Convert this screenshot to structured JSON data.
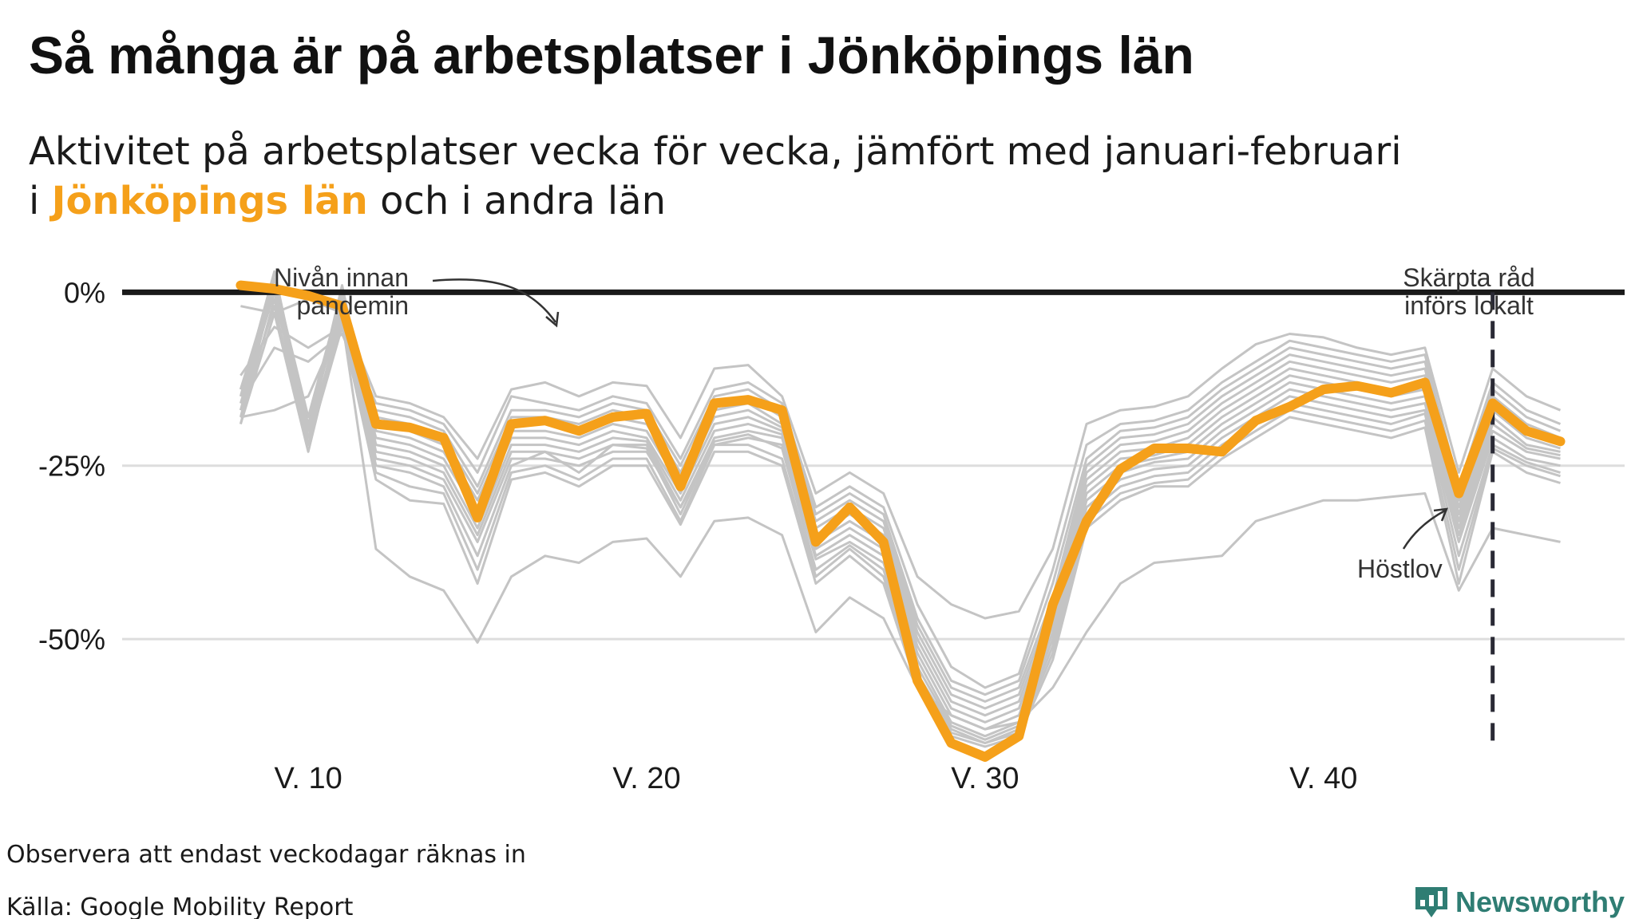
{
  "title": "Så många är på arbetsplatser i Jönköpings län",
  "subtitle": {
    "line1": "Aktivitet på arbetsplatser vecka för vecka, jämfört med januari-februari",
    "line2_prefix": "i ",
    "line2_highlight": "Jönköpings län",
    "line2_suffix": " och i andra län"
  },
  "annotations": {
    "baseline_line1": "Nivån innan",
    "baseline_line2": "pandemin",
    "restrictions_line1": "Skärpta råd",
    "restrictions_line2": "införs lokalt",
    "holiday": "Höstlov"
  },
  "footer": {
    "note": "Observera att endast veckodagar räknas in",
    "source": "Källa: Google Mobility Report",
    "brand": "Newsworthy"
  },
  "colors": {
    "highlight": "#f5a01a",
    "others": "#c4c4c4",
    "baseline": "#1a1a1a",
    "grid": "#dddddd",
    "brand": "#2f7d73"
  },
  "chart_data": {
    "type": "line",
    "xlabel": "",
    "ylabel": "",
    "x": [
      8,
      9,
      10,
      11,
      12,
      13,
      14,
      15,
      16,
      17,
      18,
      19,
      20,
      21,
      22,
      23,
      24,
      25,
      26,
      27,
      28,
      29,
      30,
      31,
      32,
      33,
      34,
      35,
      36,
      37,
      38,
      39,
      40,
      41,
      42,
      43,
      44,
      45,
      46,
      47
    ],
    "x_ticks": [
      10,
      20,
      30,
      40
    ],
    "x_tick_labels": [
      "V. 10",
      "V. 20",
      "V. 30",
      "V. 40"
    ],
    "xlim": [
      4.5,
      48.9
    ],
    "y_ticks": [
      0,
      -25,
      -50
    ],
    "y_tick_labels": [
      "0%",
      "-25%",
      "-50%"
    ],
    "ylim": [
      -70,
      12
    ],
    "grid": true,
    "baseline_y": 0,
    "event_week": 45,
    "holiday_week": 44,
    "highlight_series": {
      "name": "Jönköpings län",
      "values": [
        1,
        0.5,
        -0.5,
        -2,
        -19,
        -19.5,
        -21,
        -32.5,
        -19,
        -18.5,
        -20,
        -18,
        -17.5,
        -28,
        -16,
        -15.5,
        -17,
        -36,
        -31,
        -36,
        -56,
        -65,
        -67,
        -64,
        -45,
        -33,
        -25.5,
        -22.5,
        -22.5,
        -23,
        -18.5,
        -16.5,
        -14,
        -13.5,
        -14.5,
        -13,
        -29,
        -16,
        -20,
        -21.5
      ]
    },
    "other_series": [
      {
        "values": [
          -2,
          -3,
          -1,
          -3,
          -15,
          -16,
          -18,
          -24,
          -14,
          -13,
          -15,
          -13,
          -13.5,
          -21,
          -11,
          -10.5,
          -15,
          -29,
          -26,
          -29,
          -41,
          -45,
          -47,
          -46,
          -37,
          -19,
          -17,
          -16.5,
          -15,
          -11,
          -7.5,
          -6,
          -6.5,
          -8,
          -9,
          -8,
          -26,
          -11,
          -15,
          -17
        ]
      },
      {
        "values": [
          -12,
          -5,
          -8,
          -5,
          -16,
          -17,
          -19,
          -26,
          -15,
          -16,
          -17,
          -15,
          -16,
          -24,
          -14,
          -13,
          -16,
          -31,
          -28,
          -31,
          -45,
          -54,
          -57,
          -55,
          -40,
          -22,
          -19,
          -18.5,
          -17,
          -13,
          -10,
          -7,
          -8,
          -9,
          -10,
          -9,
          -28,
          -13,
          -17,
          -19
        ]
      },
      {
        "values": [
          -16,
          -8,
          -10,
          -6,
          -17,
          -18,
          -20,
          -28,
          -17,
          -17,
          -18,
          -16,
          -17,
          -25,
          -15,
          -14,
          -17,
          -32,
          -29,
          -32,
          -47,
          -56,
          -58,
          -56,
          -42,
          -24,
          -20,
          -19.5,
          -18,
          -14,
          -11,
          -8,
          -9,
          -10,
          -11,
          -10,
          -29,
          -14,
          -18,
          -20
        ]
      },
      {
        "values": [
          -18,
          -17,
          -15,
          -4,
          -18,
          -19,
          -21,
          -29,
          -18,
          -18,
          -19,
          -17,
          -18,
          -26,
          -16,
          -15,
          -18,
          -33,
          -30,
          -33,
          -48,
          -57,
          -59,
          -57,
          -44,
          -25,
          -21,
          -20.5,
          -19,
          -15,
          -12,
          -9,
          -10,
          -11,
          -12,
          -11,
          -30,
          -15,
          -19,
          -21
        ]
      },
      {
        "values": [
          -19,
          -3,
          -23,
          -3,
          -19,
          -20,
          -22,
          -30,
          -19,
          -19,
          -20,
          -18,
          -19,
          -27,
          -17,
          -16,
          -19,
          -34,
          -31,
          -34,
          -49,
          -58,
          -60,
          -58,
          -45,
          -26,
          -22,
          -21.5,
          -20,
          -16,
          -13,
          -10,
          -11,
          -12,
          -13,
          -12,
          -31,
          -16,
          -20,
          -22
        ]
      },
      {
        "values": [
          -17,
          -2,
          -22,
          -2,
          -20,
          -21,
          -23,
          -31,
          -20,
          -20,
          -21,
          -19,
          -20,
          -28,
          -18,
          -17,
          -19.5,
          -35,
          -32,
          -35,
          -50,
          -59,
          -61,
          -59,
          -46,
          -27,
          -23,
          -22.5,
          -21,
          -17,
          -14,
          -11,
          -12,
          -13,
          -14,
          -13,
          -32,
          -17,
          -21,
          -22.5
        ]
      },
      {
        "values": [
          -19,
          -1,
          -19,
          -2,
          -21,
          -22,
          -24,
          -32,
          -21,
          -21,
          -22,
          -20,
          -21,
          -29,
          -19,
          -18,
          -20,
          -36,
          -33,
          -36,
          -51,
          -60,
          -62,
          -60,
          -47,
          -28,
          -24,
          -23.5,
          -22,
          -18,
          -15,
          -12,
          -13,
          -14,
          -15,
          -14,
          -33,
          -18,
          -22,
          -23
        ]
      },
      {
        "values": [
          -15,
          3,
          -20,
          1,
          -22,
          -23,
          -25,
          -34,
          -22,
          -22,
          -23,
          -21,
          -21.5,
          -30,
          -20,
          -19,
          -20.5,
          -37,
          -34,
          -37,
          -52,
          -61,
          -63,
          -61,
          -48,
          -29,
          -25,
          -24,
          -23,
          -19,
          -16,
          -13,
          -14,
          -15,
          -16,
          -15,
          -34,
          -19,
          -22.5,
          -23.5
        ]
      },
      {
        "values": [
          -14,
          2,
          -18,
          0,
          -23,
          -24,
          -26,
          -35,
          -23,
          -23,
          -24,
          -22,
          -22,
          -31,
          -21,
          -20,
          -21,
          -38,
          -35,
          -38,
          -53,
          -62,
          -64,
          -62,
          -49,
          -30,
          -26,
          -24.5,
          -24,
          -20,
          -17,
          -14,
          -15,
          -16,
          -17,
          -16,
          -35,
          -20,
          -23,
          -24
        ]
      },
      {
        "values": [
          -18,
          1,
          -20,
          -1,
          -24,
          -25,
          -27,
          -36,
          -24,
          -24,
          -25,
          -23,
          -23,
          -31,
          -22,
          -21,
          -22,
          -38.5,
          -36,
          -39,
          -54,
          -62.5,
          -64.5,
          -62.5,
          -50,
          -31,
          -27,
          -25.5,
          -25,
          -21,
          -18,
          -15,
          -16,
          -17,
          -18,
          -17,
          -36,
          -21,
          -24,
          -25
        ]
      },
      {
        "values": [
          -16,
          0,
          -21,
          -3,
          -25,
          -26,
          -28,
          -38,
          -25,
          -23,
          -26,
          -22,
          -22.5,
          -32,
          -21.5,
          -20.5,
          -22.5,
          -40,
          -36.5,
          -40,
          -55,
          -63,
          -65,
          -63,
          -51,
          -32,
          -28,
          -26.5,
          -26,
          -22,
          -19,
          -16,
          -17,
          -18,
          -19,
          -17.5,
          -38,
          -22,
          -24.5,
          -26
        ]
      },
      {
        "values": [
          -15,
          1,
          -21,
          -4,
          -26,
          -28,
          -29,
          -40,
          -26,
          -25,
          -27,
          -24,
          -24,
          -33,
          -22,
          -22,
          -24,
          -41,
          -37,
          -41,
          -56,
          -63.5,
          -65,
          -63.5,
          -52,
          -33,
          -29,
          -27.5,
          -27,
          -23,
          -20,
          -17,
          -18,
          -19,
          -20,
          -18.5,
          -40,
          -22.5,
          -25,
          -26.5
        ]
      },
      {
        "values": [
          -14,
          0,
          -22,
          -5,
          -27,
          -30,
          -30.5,
          -42,
          -27,
          -26,
          -28,
          -25,
          -25,
          -33.5,
          -23,
          -23,
          -25,
          -42,
          -38,
          -42,
          -57,
          -64,
          -65.5,
          -64,
          -53,
          -34,
          -30,
          -28,
          -28,
          -24,
          -21,
          -18,
          -19,
          -20,
          -21,
          -19.5,
          -42,
          -23,
          -26,
          -27.5
        ]
      },
      {
        "values": [
          -17,
          1,
          -20,
          -4,
          -37,
          -41,
          -43,
          -50.5,
          -41,
          -38,
          -39,
          -36,
          -35.5,
          -41,
          -33,
          -32.5,
          -35,
          -49,
          -44,
          -47,
          -57,
          -61,
          -63,
          -62,
          -57,
          -49,
          -42,
          -39,
          -38.5,
          -38,
          -33,
          -31.5,
          -30,
          -30,
          -29.5,
          -29,
          -43,
          -34,
          -35,
          -36
        ]
      }
    ]
  }
}
